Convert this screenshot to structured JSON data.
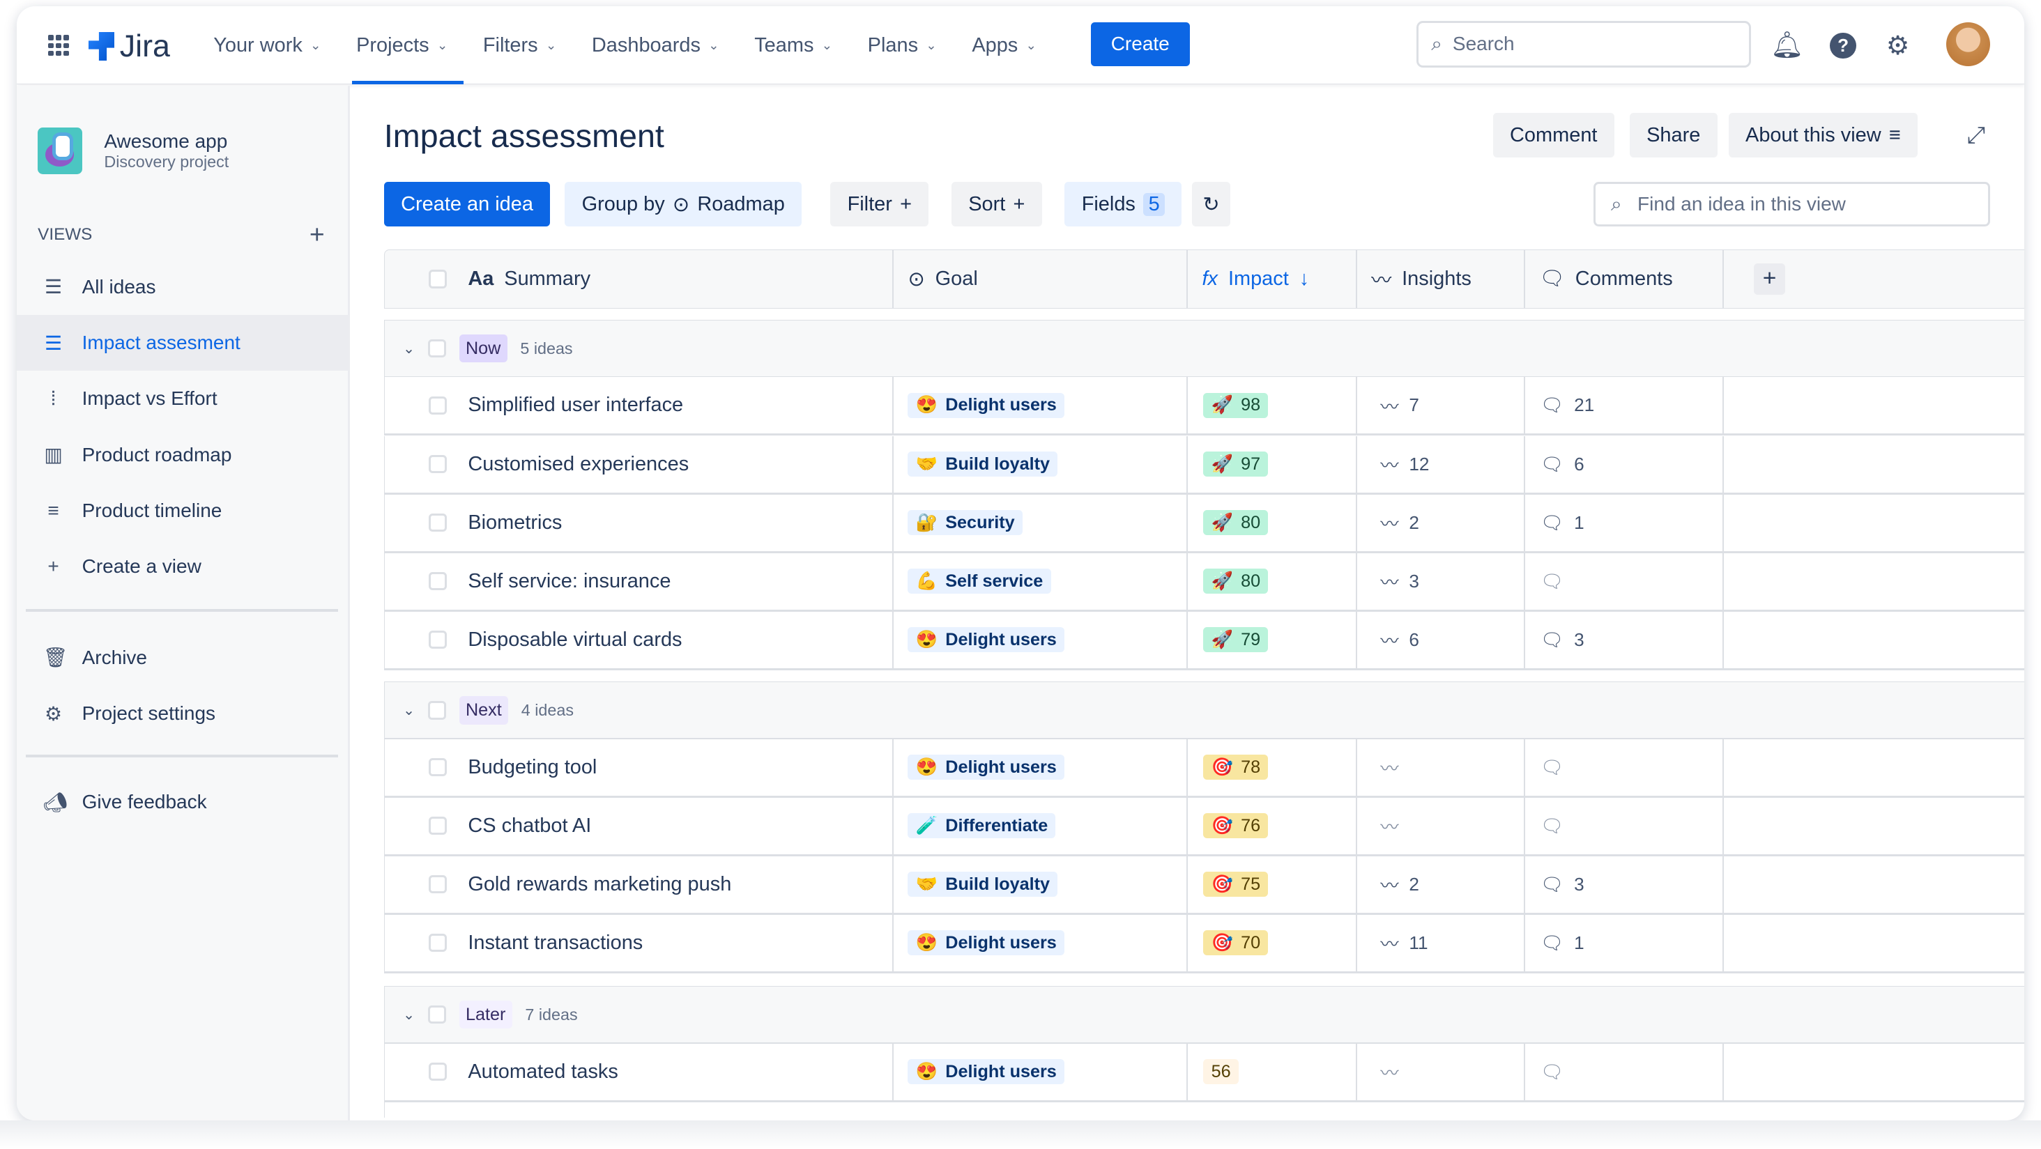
{
  "topbar": {
    "brand": "Jira",
    "nav": [
      {
        "label": "Your work",
        "active": false
      },
      {
        "label": "Projects",
        "active": true
      },
      {
        "label": "Filters",
        "active": false
      },
      {
        "label": "Dashboards",
        "active": false
      },
      {
        "label": "Teams",
        "active": false
      },
      {
        "label": "Plans",
        "active": false
      },
      {
        "label": "Apps",
        "active": false
      }
    ],
    "create": "Create",
    "search_placeholder": "Search"
  },
  "sidebar": {
    "project_name": "Awesome app",
    "project_type": "Discovery project",
    "views_label": "VIEWS",
    "items": [
      {
        "label": "All ideas",
        "icon": "list-icon"
      },
      {
        "label": "Impact assesment",
        "icon": "list-icon",
        "selected": true
      },
      {
        "label": "Impact vs Effort",
        "icon": "chart-icon"
      },
      {
        "label": "Product roadmap",
        "icon": "board-icon"
      },
      {
        "label": "Product timeline",
        "icon": "timeline-icon"
      },
      {
        "label": "Create a view",
        "icon": "plus-icon"
      }
    ],
    "archive": "Archive",
    "settings": "Project settings",
    "feedback": "Give feedback"
  },
  "main": {
    "title": "Impact assessment",
    "comment": "Comment",
    "share": "Share",
    "about": "About this view",
    "create_idea": "Create an idea",
    "group_by": "Group by",
    "group_value": "Roadmap",
    "filter": "Filter",
    "sort": "Sort",
    "fields": "Fields",
    "fields_count": "5",
    "find_placeholder": "Find an idea in this view"
  },
  "columns": {
    "summary": "Summary",
    "summary_prefix": "Aa",
    "goal": "Goal",
    "impact": "Impact",
    "impact_prefix": "fx",
    "insights": "Insights",
    "comments": "Comments"
  },
  "colors": {
    "accent": "#0c66e4",
    "impact_high": "#baf3db",
    "impact_mid": "#f8e6a0",
    "impact_low": "#fff4e5",
    "now": "#dfd8fd",
    "next": "#ece8fc",
    "later": "#f3f0ff"
  },
  "groups": [
    {
      "name": "Now",
      "count": "5 ideas",
      "rows": [
        {
          "summary": "Simplified user interface",
          "goal_icon": "😍",
          "goal": "Delight users",
          "impact_icon": "🚀",
          "impact": "98",
          "insights": "7",
          "comments": "21"
        },
        {
          "summary": "Customised experiences",
          "goal_icon": "🤝",
          "goal": "Build loyalty",
          "impact_icon": "🚀",
          "impact": "97",
          "insights": "12",
          "comments": "6"
        },
        {
          "summary": "Biometrics",
          "goal_icon": "🔐",
          "goal": "Security",
          "impact_icon": "🚀",
          "impact": "80",
          "insights": "2",
          "comments": "1"
        },
        {
          "summary": "Self service: insurance",
          "goal_icon": "💪",
          "goal": "Self service",
          "impact_icon": "🚀",
          "impact": "80",
          "insights": "3",
          "comments": ""
        },
        {
          "summary": "Disposable virtual cards",
          "goal_icon": "😍",
          "goal": "Delight users",
          "impact_icon": "🚀",
          "impact": "79",
          "insights": "6",
          "comments": "3"
        }
      ]
    },
    {
      "name": "Next",
      "count": "4 ideas",
      "rows": [
        {
          "summary": "Budgeting tool",
          "goal_icon": "😍",
          "goal": "Delight users",
          "impact_icon": "🎯",
          "impact": "78",
          "insights": "",
          "comments": ""
        },
        {
          "summary": "CS chatbot AI",
          "goal_icon": "🧪",
          "goal": "Differentiate",
          "impact_icon": "🎯",
          "impact": "76",
          "insights": "",
          "comments": ""
        },
        {
          "summary": "Gold rewards marketing push",
          "goal_icon": "🤝",
          "goal": "Build loyalty",
          "impact_icon": "🎯",
          "impact": "75",
          "insights": "2",
          "comments": "3"
        },
        {
          "summary": "Instant transactions",
          "goal_icon": "😍",
          "goal": "Delight users",
          "impact_icon": "🎯",
          "impact": "70",
          "insights": "11",
          "comments": "1"
        }
      ]
    },
    {
      "name": "Later",
      "count": "7 ideas",
      "rows": [
        {
          "summary": "Automated tasks",
          "goal_icon": "😍",
          "goal": "Delight users",
          "impact_icon": "",
          "impact": "56",
          "insights": "",
          "comments": ""
        }
      ]
    }
  ]
}
